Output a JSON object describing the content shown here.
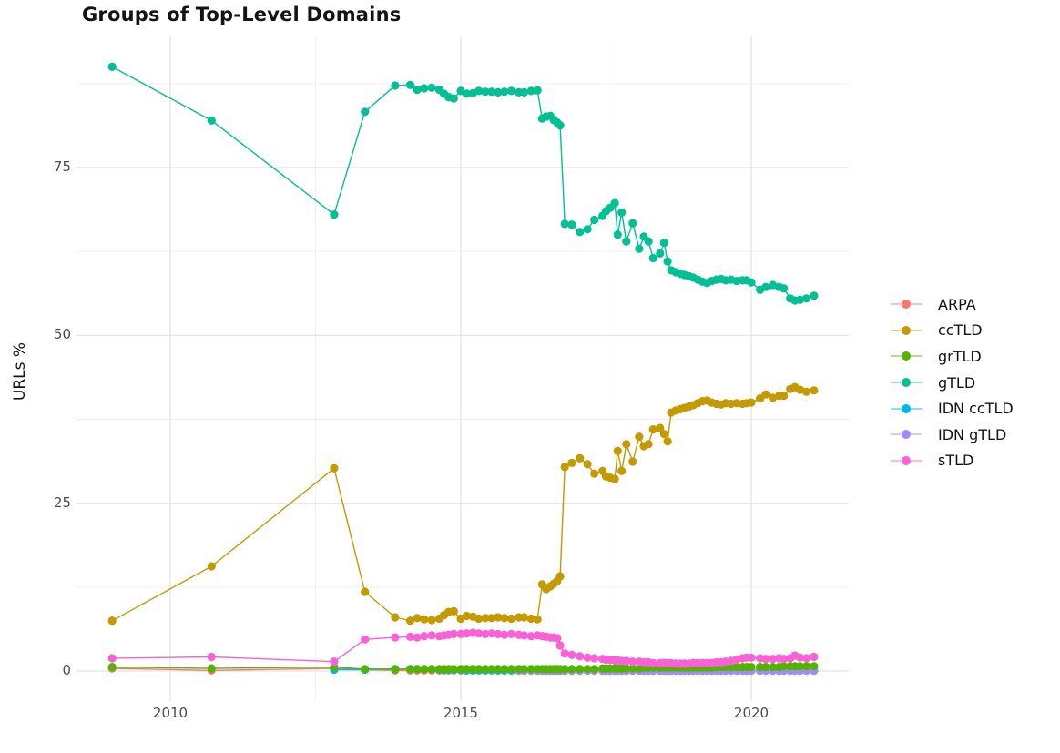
{
  "chart_data": {
    "type": "line",
    "title": "Groups of Top-Level Domains",
    "xlabel": "",
    "ylabel": "URLs %",
    "x_ticks": [
      2010,
      2015,
      2020
    ],
    "x_tick_labels": [
      "2010",
      "2015",
      "2020"
    ],
    "y_ticks": [
      0,
      25,
      50,
      75
    ],
    "y_tick_labels": [
      "0",
      "25",
      "50",
      "75"
    ],
    "x_range": [
      2008.4,
      2021.7
    ],
    "y_range": [
      -4.5,
      94.5
    ],
    "grid": true,
    "legend_position": "right",
    "z_order": [
      "ARPA",
      "IDN ccTLD",
      "IDN gTLD",
      "grTLD",
      "ccTLD",
      "gTLD",
      "sTLD"
    ],
    "series": [
      {
        "name": "ARPA",
        "color": "#F8766D",
        "x": [
          2009.0,
          2010.71,
          2012.82,
          2013.35,
          2013.87,
          2014.13,
          2014.25,
          2014.37,
          2014.5,
          2014.63,
          2014.71,
          2014.79,
          2014.88,
          2015.0,
          2015.1,
          2015.21,
          2015.31,
          2015.42,
          2015.53,
          2015.64,
          2015.75,
          2015.87,
          2016.0,
          2016.09,
          2016.21,
          2016.32,
          2016.4,
          2016.47,
          2016.54,
          2016.6,
          2016.66,
          2016.71,
          2016.79,
          2016.91,
          2017.05,
          2017.18,
          2017.3,
          2017.44,
          2017.5,
          2017.57,
          2017.65,
          2017.7,
          2017.77,
          2017.85,
          2017.96,
          2018.07,
          2018.15,
          2018.23,
          2018.31,
          2018.43,
          2018.5,
          2018.56,
          2018.62,
          2018.7,
          2018.78,
          2018.85,
          2018.93,
          2019.0,
          2019.08,
          2019.16,
          2019.24,
          2019.32,
          2019.4,
          2019.48,
          2019.56,
          2019.65,
          2019.75,
          2019.85,
          2019.92,
          2020.0,
          2020.15,
          2020.25,
          2020.37,
          2020.48,
          2020.56,
          2020.67,
          2020.75,
          2020.84,
          2020.95,
          2021.08
        ],
        "y": [
          0.4,
          0.1,
          0.4,
          0.2,
          0.1,
          0.1,
          0.1,
          0.1,
          0.1,
          0.1,
          0.1,
          0.1,
          0.1,
          0.1,
          0.1,
          0.1,
          0.1,
          0.1,
          0.1,
          0.1,
          0.1,
          0.1,
          0.1,
          0.1,
          0.1,
          0.1,
          0.1,
          0.1,
          0.1,
          0.1,
          0.1,
          0.1,
          0.1,
          0.1,
          0.1,
          0.1,
          0.1,
          0.1,
          0.1,
          0.1,
          0.1,
          0.1,
          0.1,
          0.1,
          0.1,
          0.1,
          0.1,
          0.1,
          0.1,
          0.1,
          0.1,
          0.1,
          0.1,
          0.1,
          0.1,
          0.1,
          0.1,
          0.1,
          0.1,
          0.1,
          0.1,
          0.1,
          0.1,
          0.1,
          0.1,
          0.1,
          0.1,
          0.1,
          0.1,
          0.1,
          0.1,
          0.1,
          0.1,
          0.1,
          0.1,
          0.1,
          0.1,
          0.1,
          0.1,
          0.1
        ]
      },
      {
        "name": "ccTLD",
        "color": "#C49A00",
        "x": [
          2009.0,
          2010.71,
          2012.82,
          2013.35,
          2013.87,
          2014.13,
          2014.25,
          2014.37,
          2014.5,
          2014.63,
          2014.71,
          2014.79,
          2014.88,
          2015.0,
          2015.1,
          2015.21,
          2015.31,
          2015.42,
          2015.53,
          2015.64,
          2015.75,
          2015.87,
          2016.0,
          2016.09,
          2016.21,
          2016.32,
          2016.4,
          2016.47,
          2016.54,
          2016.6,
          2016.66,
          2016.71,
          2016.79,
          2016.91,
          2017.05,
          2017.18,
          2017.3,
          2017.44,
          2017.5,
          2017.57,
          2017.65,
          2017.7,
          2017.77,
          2017.85,
          2017.96,
          2018.07,
          2018.15,
          2018.23,
          2018.31,
          2018.43,
          2018.5,
          2018.56,
          2018.62,
          2018.7,
          2018.78,
          2018.85,
          2018.93,
          2019.0,
          2019.08,
          2019.16,
          2019.24,
          2019.32,
          2019.4,
          2019.48,
          2019.56,
          2019.65,
          2019.75,
          2019.85,
          2019.92,
          2020.0,
          2020.15,
          2020.25,
          2020.37,
          2020.48,
          2020.56,
          2020.67,
          2020.75,
          2020.84,
          2020.95,
          2021.08
        ],
        "y": [
          7.5,
          15.6,
          30.2,
          11.8,
          8.0,
          7.5,
          7.9,
          7.7,
          7.6,
          7.8,
          8.3,
          8.8,
          8.9,
          7.8,
          8.2,
          8.1,
          7.8,
          7.9,
          7.9,
          8.0,
          7.9,
          7.8,
          8.0,
          8.0,
          7.8,
          7.7,
          12.9,
          12.2,
          12.6,
          13.0,
          13.4,
          14.1,
          30.4,
          31.0,
          31.7,
          30.8,
          29.4,
          29.8,
          29.0,
          28.8,
          28.6,
          32.8,
          29.8,
          33.8,
          31.2,
          34.9,
          33.5,
          33.8,
          36.0,
          36.2,
          35.3,
          34.2,
          38.5,
          38.8,
          39.0,
          39.2,
          39.4,
          39.6,
          39.9,
          40.2,
          40.3,
          40.0,
          39.8,
          39.7,
          39.9,
          39.8,
          39.9,
          39.8,
          39.9,
          40.0,
          40.6,
          41.2,
          40.7,
          41.0,
          41.0,
          42.0,
          42.3,
          41.9,
          41.6,
          41.8
        ]
      },
      {
        "name": "grTLD",
        "color": "#53B400",
        "x": [
          2009.0,
          2010.71,
          2012.82,
          2013.35,
          2013.87,
          2014.13,
          2014.25,
          2014.37,
          2014.5,
          2014.63,
          2014.71,
          2014.79,
          2014.88,
          2015.0,
          2015.1,
          2015.21,
          2015.31,
          2015.42,
          2015.53,
          2015.64,
          2015.75,
          2015.87,
          2016.0,
          2016.09,
          2016.21,
          2016.32,
          2016.4,
          2016.47,
          2016.54,
          2016.6,
          2016.66,
          2016.71,
          2016.79,
          2016.91,
          2017.05,
          2017.18,
          2017.3,
          2017.44,
          2017.5,
          2017.57,
          2017.65,
          2017.7,
          2017.77,
          2017.85,
          2017.96,
          2018.07,
          2018.15,
          2018.23,
          2018.31,
          2018.43,
          2018.5,
          2018.56,
          2018.62,
          2018.7,
          2018.78,
          2018.85,
          2018.93,
          2019.0,
          2019.08,
          2019.16,
          2019.24,
          2019.32,
          2019.4,
          2019.48,
          2019.56,
          2019.65,
          2019.75,
          2019.85,
          2019.92,
          2020.0,
          2020.15,
          2020.25,
          2020.37,
          2020.48,
          2020.56,
          2020.67,
          2020.75,
          2020.84,
          2020.95,
          2021.08
        ],
        "y": [
          0.6,
          0.4,
          0.6,
          0.3,
          0.3,
          0.3,
          0.3,
          0.3,
          0.3,
          0.3,
          0.3,
          0.3,
          0.3,
          0.3,
          0.3,
          0.3,
          0.3,
          0.3,
          0.3,
          0.3,
          0.3,
          0.3,
          0.3,
          0.3,
          0.3,
          0.3,
          0.3,
          0.3,
          0.3,
          0.3,
          0.3,
          0.3,
          0.3,
          0.3,
          0.3,
          0.3,
          0.3,
          0.4,
          0.4,
          0.4,
          0.4,
          0.4,
          0.4,
          0.4,
          0.4,
          0.4,
          0.5,
          0.5,
          0.5,
          0.5,
          0.5,
          0.5,
          0.5,
          0.5,
          0.5,
          0.5,
          0.5,
          0.5,
          0.5,
          0.5,
          0.5,
          0.5,
          0.6,
          0.6,
          0.6,
          0.6,
          0.6,
          0.6,
          0.6,
          0.6,
          0.6,
          0.6,
          0.6,
          0.6,
          0.7,
          0.7,
          0.7,
          0.7,
          0.7,
          0.7
        ]
      },
      {
        "name": "gTLD",
        "color": "#00C094",
        "x": [
          2009.0,
          2010.71,
          2012.82,
          2013.35,
          2013.87,
          2014.13,
          2014.25,
          2014.37,
          2014.5,
          2014.63,
          2014.71,
          2014.79,
          2014.88,
          2015.0,
          2015.1,
          2015.21,
          2015.31,
          2015.42,
          2015.53,
          2015.64,
          2015.75,
          2015.87,
          2016.0,
          2016.09,
          2016.21,
          2016.32,
          2016.4,
          2016.47,
          2016.54,
          2016.6,
          2016.66,
          2016.71,
          2016.79,
          2016.91,
          2017.05,
          2017.18,
          2017.3,
          2017.44,
          2017.5,
          2017.57,
          2017.65,
          2017.7,
          2017.77,
          2017.85,
          2017.96,
          2018.07,
          2018.15,
          2018.23,
          2018.31,
          2018.43,
          2018.5,
          2018.56,
          2018.62,
          2018.7,
          2018.78,
          2018.85,
          2018.93,
          2019.0,
          2019.08,
          2019.16,
          2019.24,
          2019.32,
          2019.4,
          2019.48,
          2019.56,
          2019.65,
          2019.75,
          2019.85,
          2019.92,
          2020.0,
          2020.15,
          2020.25,
          2020.37,
          2020.48,
          2020.56,
          2020.67,
          2020.75,
          2020.84,
          2020.95,
          2021.08
        ],
        "y": [
          90.0,
          82.0,
          68.0,
          83.3,
          87.2,
          87.3,
          86.6,
          86.8,
          86.9,
          86.6,
          86.0,
          85.5,
          85.3,
          86.4,
          86.0,
          86.1,
          86.4,
          86.3,
          86.3,
          86.2,
          86.3,
          86.4,
          86.2,
          86.2,
          86.4,
          86.5,
          82.3,
          82.6,
          82.7,
          82.1,
          81.7,
          81.3,
          66.6,
          66.5,
          65.4,
          65.8,
          67.2,
          67.8,
          68.5,
          69.0,
          69.7,
          65.0,
          68.3,
          64.0,
          66.7,
          62.9,
          64.7,
          64.0,
          61.5,
          62.2,
          63.8,
          61.0,
          59.7,
          59.4,
          59.2,
          59.0,
          58.8,
          58.6,
          58.3,
          58.0,
          57.8,
          58.1,
          58.3,
          58.4,
          58.2,
          58.3,
          58.1,
          58.2,
          58.2,
          57.9,
          56.8,
          57.2,
          57.5,
          57.2,
          57.0,
          55.5,
          55.2,
          55.3,
          55.5,
          55.9
        ]
      },
      {
        "name": "IDN ccTLD",
        "color": "#00B6EB",
        "x": [
          2012.82,
          2013.35,
          2013.87,
          2014.13,
          2014.25,
          2014.37,
          2014.5,
          2014.63,
          2014.71,
          2014.79,
          2014.88,
          2015.0,
          2015.1,
          2015.21,
          2015.31,
          2015.42,
          2015.53,
          2015.64,
          2015.75,
          2015.87,
          2016.0,
          2016.09,
          2016.21,
          2016.32,
          2016.4,
          2016.47,
          2016.54,
          2016.6,
          2016.66,
          2016.71,
          2016.79,
          2016.91,
          2017.05,
          2017.18,
          2017.3,
          2017.44,
          2017.5,
          2017.57,
          2017.65,
          2017.7,
          2017.77,
          2017.85,
          2017.96,
          2018.07,
          2018.15,
          2018.23,
          2018.31,
          2018.43,
          2018.5,
          2018.56,
          2018.62,
          2018.7,
          2018.78,
          2018.85,
          2018.93,
          2019.0,
          2019.08,
          2019.16,
          2019.24,
          2019.32,
          2019.4,
          2019.48,
          2019.56,
          2019.65,
          2019.75,
          2019.85,
          2019.92,
          2020.0,
          2020.15,
          2020.25,
          2020.37,
          2020.48,
          2020.56,
          2020.67,
          2020.75,
          2020.84,
          2020.95,
          2021.08
        ],
        "y": [
          0.2,
          0.2,
          0.3,
          0.3,
          0.3,
          0.3,
          0.3,
          0.2,
          0.2,
          0.2,
          0.2,
          0.2,
          0.1,
          0.1,
          0.1,
          0.1,
          0.1,
          0.1,
          0.1,
          0.1,
          0.1,
          0.1,
          0.1,
          0.1,
          0.1,
          0.1,
          0.1,
          0.1,
          0.1,
          0.1,
          0.1,
          0.1,
          0.1,
          0.1,
          0.1,
          0.1,
          0.1,
          0.1,
          0.1,
          0.1,
          0.1,
          0.1,
          0.1,
          0.1,
          0.1,
          0.1,
          0.1,
          0.1,
          0.1,
          0.1,
          0.1,
          0.1,
          0.1,
          0.1,
          0.1,
          0.1,
          0.1,
          0.1,
          0.1,
          0.1,
          0.1,
          0.1,
          0.1,
          0.1,
          0.1,
          0.1,
          0.1,
          0.1,
          0.1,
          0.1,
          0.1,
          0.1,
          0.1,
          0.1,
          0.1,
          0.1,
          0.1,
          0.1
        ]
      },
      {
        "name": "IDN gTLD",
        "color": "#A58AFF",
        "x": [
          2016.0,
          2016.09,
          2016.21,
          2016.32,
          2016.4,
          2016.47,
          2016.54,
          2016.6,
          2016.66,
          2016.71,
          2016.79,
          2016.91,
          2017.05,
          2017.18,
          2017.3,
          2017.44,
          2017.5,
          2017.57,
          2017.65,
          2017.7,
          2017.77,
          2017.85,
          2017.96,
          2018.07,
          2018.15,
          2018.23,
          2018.31,
          2018.43,
          2018.5,
          2018.56,
          2018.62,
          2018.7,
          2018.78,
          2018.85,
          2018.93,
          2019.0,
          2019.08,
          2019.16,
          2019.24,
          2019.32,
          2019.4,
          2019.48,
          2019.56,
          2019.65,
          2019.75,
          2019.85,
          2019.92,
          2020.0,
          2020.15,
          2020.25,
          2020.37,
          2020.48,
          2020.56,
          2020.67,
          2020.75,
          2020.84,
          2020.95,
          2021.08
        ],
        "y": [
          0.05,
          0.05,
          0.05,
          0.05,
          0.05,
          0.05,
          0.05,
          0.05,
          0.05,
          0.05,
          0.05,
          0.05,
          0.05,
          0.05,
          0.05,
          0.05,
          0.05,
          0.05,
          0.05,
          0.05,
          0.05,
          0.05,
          0.05,
          0.05,
          0.05,
          0.05,
          0.05,
          0.05,
          0.05,
          0.05,
          0.05,
          0.05,
          0.05,
          0.05,
          0.05,
          0.05,
          0.05,
          0.05,
          0.05,
          0.05,
          0.05,
          0.05,
          0.05,
          0.05,
          0.05,
          0.05,
          0.05,
          0.05,
          0.05,
          0.05,
          0.05,
          0.05,
          0.05,
          0.05,
          0.05,
          0.05,
          0.05,
          0.05
        ]
      },
      {
        "name": "sTLD",
        "color": "#FB61D7",
        "x": [
          2009.0,
          2010.71,
          2012.82,
          2013.35,
          2013.87,
          2014.13,
          2014.25,
          2014.37,
          2014.5,
          2014.63,
          2014.71,
          2014.79,
          2014.88,
          2015.0,
          2015.1,
          2015.21,
          2015.31,
          2015.42,
          2015.53,
          2015.64,
          2015.75,
          2015.87,
          2016.0,
          2016.09,
          2016.21,
          2016.32,
          2016.4,
          2016.47,
          2016.54,
          2016.6,
          2016.66,
          2016.71,
          2016.79,
          2016.91,
          2017.05,
          2017.18,
          2017.3,
          2017.44,
          2017.5,
          2017.57,
          2017.65,
          2017.7,
          2017.77,
          2017.85,
          2017.96,
          2018.07,
          2018.15,
          2018.23,
          2018.31,
          2018.43,
          2018.5,
          2018.56,
          2018.62,
          2018.7,
          2018.78,
          2018.85,
          2018.93,
          2019.0,
          2019.08,
          2019.16,
          2019.24,
          2019.32,
          2019.4,
          2019.48,
          2019.56,
          2019.65,
          2019.75,
          2019.85,
          2019.92,
          2020.0,
          2020.15,
          2020.25,
          2020.37,
          2020.48,
          2020.56,
          2020.67,
          2020.75,
          2020.84,
          2020.95,
          2021.08
        ],
        "y": [
          1.9,
          2.1,
          1.4,
          4.7,
          5.0,
          5.1,
          5.0,
          5.2,
          5.3,
          5.2,
          5.3,
          5.4,
          5.5,
          5.5,
          5.6,
          5.7,
          5.6,
          5.5,
          5.6,
          5.5,
          5.4,
          5.5,
          5.4,
          5.3,
          5.2,
          5.3,
          5.2,
          5.1,
          5.0,
          5.0,
          4.9,
          3.8,
          2.6,
          2.4,
          2.2,
          2.0,
          1.9,
          1.8,
          1.7,
          1.7,
          1.6,
          1.6,
          1.5,
          1.5,
          1.4,
          1.4,
          1.3,
          1.3,
          1.2,
          1.2,
          1.2,
          1.2,
          1.2,
          1.1,
          1.1,
          1.1,
          1.1,
          1.2,
          1.2,
          1.2,
          1.2,
          1.2,
          1.3,
          1.3,
          1.4,
          1.5,
          1.7,
          1.9,
          2.0,
          2.0,
          1.9,
          1.8,
          1.8,
          1.9,
          1.8,
          1.9,
          2.3,
          2.0,
          1.9,
          2.1
        ]
      }
    ]
  }
}
